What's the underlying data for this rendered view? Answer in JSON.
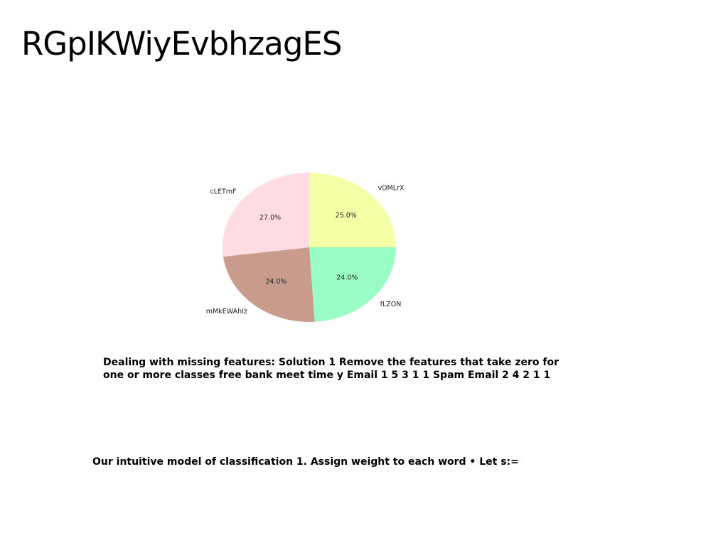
{
  "slide": {
    "title": "RGpIKWiyEvbhzagES",
    "paragraph_1": "Dealing with missing features: Solution 1 Remove the features that take zero for one or more classes free bank meet time y Email 1 5 3 1 1 Spam Email 2 4 2 1 1",
    "paragraph_2": "Our intuitive model of classification 1. Assign weight to each word • Let s:="
  },
  "chart_data": {
    "type": "pie",
    "title": "",
    "start_angle_deg": 90,
    "direction": "clockwise",
    "slices": [
      {
        "label": "vDMLrX",
        "value": 25.0,
        "pct_label": "25.0%",
        "color": "#f4ffa6"
      },
      {
        "label": "fLZON",
        "value": 24.0,
        "pct_label": "24.0%",
        "color": "#99fdc5"
      },
      {
        "label": "mMkEWAhIz",
        "value": 24.0,
        "pct_label": "24.0%",
        "color": "#c99c8e"
      },
      {
        "label": "cLETmF",
        "value": 27.0,
        "pct_label": "27.0%",
        "color": "#ffdbe4"
      }
    ]
  }
}
